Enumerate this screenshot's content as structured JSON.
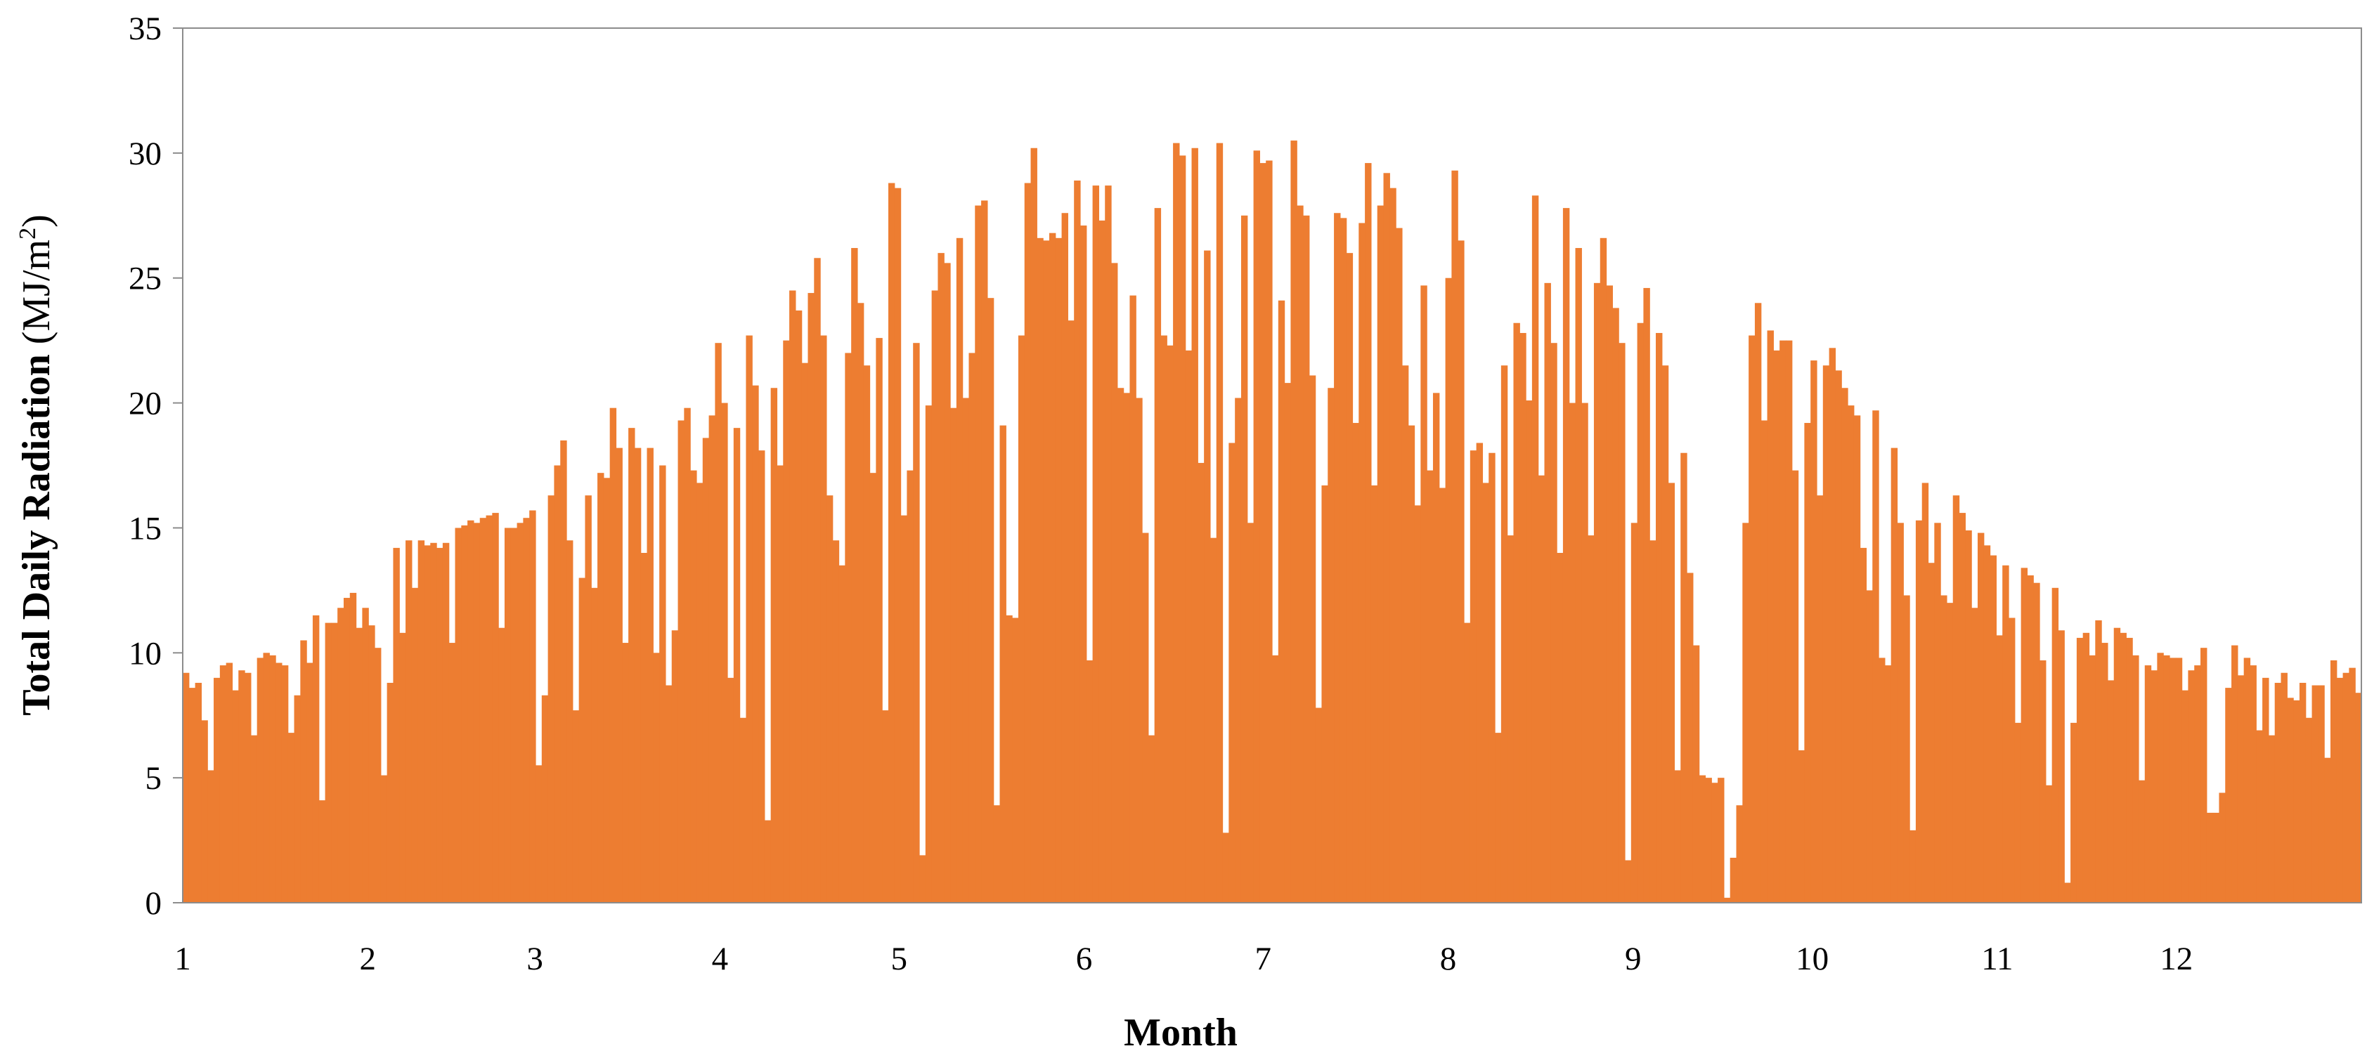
{
  "chart_data": {
    "type": "bar",
    "xlabel": "Month",
    "ylabel": "Total Daily Radiation (MJ/m²)",
    "ylabel_parts": {
      "prefix": "Total Daily Radiation",
      "unit_open": " (MJ/m",
      "unit_sup": "2",
      "unit_close": ")"
    },
    "ylim": [
      0,
      35
    ],
    "yticks": [
      0,
      5,
      10,
      15,
      20,
      25,
      30,
      35
    ],
    "xticks": [
      "1",
      "2",
      "3",
      "4",
      "5",
      "6",
      "7",
      "8",
      "9",
      "10",
      "11",
      "12"
    ],
    "xtick_days": [
      1,
      32,
      60,
      91,
      121,
      152,
      182,
      213,
      244,
      274,
      305,
      335
    ],
    "x_range": [
      1,
      366
    ],
    "grid": false,
    "legend": "none",
    "bar_color": "#ED7D31",
    "series": [
      {
        "values": [
          9.2,
          8.6,
          8.8,
          7.3,
          5.3,
          9.0,
          9.5,
          9.6,
          8.5,
          9.3,
          9.2,
          6.7,
          9.8,
          10.0,
          9.9,
          9.6,
          9.5,
          6.8,
          8.3,
          10.5,
          9.6,
          11.5,
          4.1,
          11.2,
          11.2,
          11.8,
          12.2,
          12.4,
          11.0,
          11.8,
          11.1,
          10.2,
          5.1,
          8.8,
          14.2,
          10.8,
          14.5,
          12.6,
          14.5,
          14.3,
          14.4,
          14.2,
          14.4,
          10.4,
          15.0,
          15.1,
          15.3,
          15.2,
          15.4,
          15.5,
          15.6,
          11.0,
          15.0,
          15.0,
          15.2,
          15.4,
          15.7,
          5.5,
          8.3,
          16.3,
          17.5,
          18.5,
          14.5,
          7.7,
          13.0,
          16.3,
          12.6,
          17.2,
          17.0,
          19.8,
          18.2,
          10.4,
          19.0,
          18.2,
          14.0,
          18.2,
          10.0,
          17.5,
          8.7,
          10.9,
          19.3,
          19.8,
          17.3,
          16.8,
          18.6,
          19.5,
          22.4,
          20.0,
          9.0,
          19.0,
          7.4,
          22.7,
          20.7,
          18.1,
          3.3,
          20.6,
          17.5,
          22.5,
          24.5,
          23.7,
          21.6,
          24.4,
          25.8,
          22.7,
          16.3,
          14.5,
          13.5,
          22.0,
          26.2,
          24.0,
          21.5,
          17.2,
          22.6,
          7.7,
          28.8,
          28.6,
          15.5,
          17.3,
          22.4,
          1.9,
          19.9,
          24.5,
          26.0,
          25.6,
          19.8,
          26.6,
          20.2,
          22.0,
          27.9,
          28.1,
          24.2,
          3.9,
          19.1,
          11.5,
          11.4,
          22.7,
          28.8,
          30.2,
          26.6,
          26.5,
          26.8,
          26.6,
          27.6,
          23.3,
          28.9,
          27.1,
          9.7,
          28.7,
          27.3,
          28.7,
          25.6,
          20.6,
          20.4,
          24.3,
          20.2,
          14.8,
          6.7,
          27.8,
          22.7,
          22.3,
          30.4,
          29.9,
          22.1,
          30.2,
          17.6,
          26.1,
          14.6,
          30.4,
          2.8,
          18.4,
          20.2,
          27.5,
          15.2,
          30.1,
          29.6,
          29.7,
          9.9,
          24.1,
          20.8,
          30.5,
          27.9,
          27.5,
          21.1,
          7.8,
          16.7,
          20.6,
          27.6,
          27.4,
          26.0,
          19.2,
          27.2,
          29.6,
          16.7,
          27.9,
          29.2,
          28.6,
          27.0,
          21.5,
          19.1,
          15.9,
          24.7,
          17.3,
          20.4,
          16.6,
          25.0,
          29.3,
          26.5,
          11.2,
          18.1,
          18.4,
          16.8,
          18.0,
          6.8,
          21.5,
          14.7,
          23.2,
          22.8,
          20.1,
          28.3,
          17.1,
          24.8,
          22.4,
          14.0,
          27.8,
          20.0,
          26.2,
          20.0,
          14.7,
          24.8,
          26.6,
          24.7,
          23.8,
          22.4,
          1.7,
          15.2,
          23.2,
          24.6,
          14.5,
          22.8,
          21.5,
          16.8,
          5.3,
          18.0,
          13.2,
          10.3,
          5.1,
          5.0,
          4.8,
          5.0,
          0.2,
          1.8,
          3.9,
          15.2,
          22.7,
          24.0,
          19.3,
          22.9,
          22.1,
          22.5,
          22.5,
          17.3,
          6.1,
          19.2,
          21.7,
          16.3,
          21.5,
          22.2,
          21.3,
          20.6,
          19.9,
          19.5,
          14.2,
          12.5,
          19.7,
          9.8,
          9.5,
          18.2,
          15.2,
          12.3,
          2.9,
          15.3,
          16.8,
          13.6,
          15.2,
          12.3,
          12.0,
          16.3,
          15.6,
          14.9,
          11.8,
          14.8,
          14.3,
          13.9,
          10.7,
          13.5,
          11.4,
          7.2,
          13.4,
          13.1,
          12.8,
          9.7,
          4.7,
          12.6,
          10.9,
          0.8,
          7.2,
          10.6,
          10.8,
          9.9,
          11.3,
          10.4,
          8.9,
          11.0,
          10.8,
          10.6,
          9.9,
          4.9,
          9.5,
          9.3,
          10.0,
          9.9,
          9.8,
          9.8,
          8.5,
          9.3,
          9.5,
          10.2,
          3.6,
          3.6,
          4.4,
          8.6,
          10.3,
          9.1,
          9.8,
          9.5,
          6.9,
          9.0,
          6.7,
          8.8,
          9.2,
          8.2,
          8.1,
          8.8,
          7.4,
          8.7,
          8.7,
          5.8,
          9.7,
          9.0,
          9.2,
          9.4,
          8.4
        ]
      }
    ]
  }
}
